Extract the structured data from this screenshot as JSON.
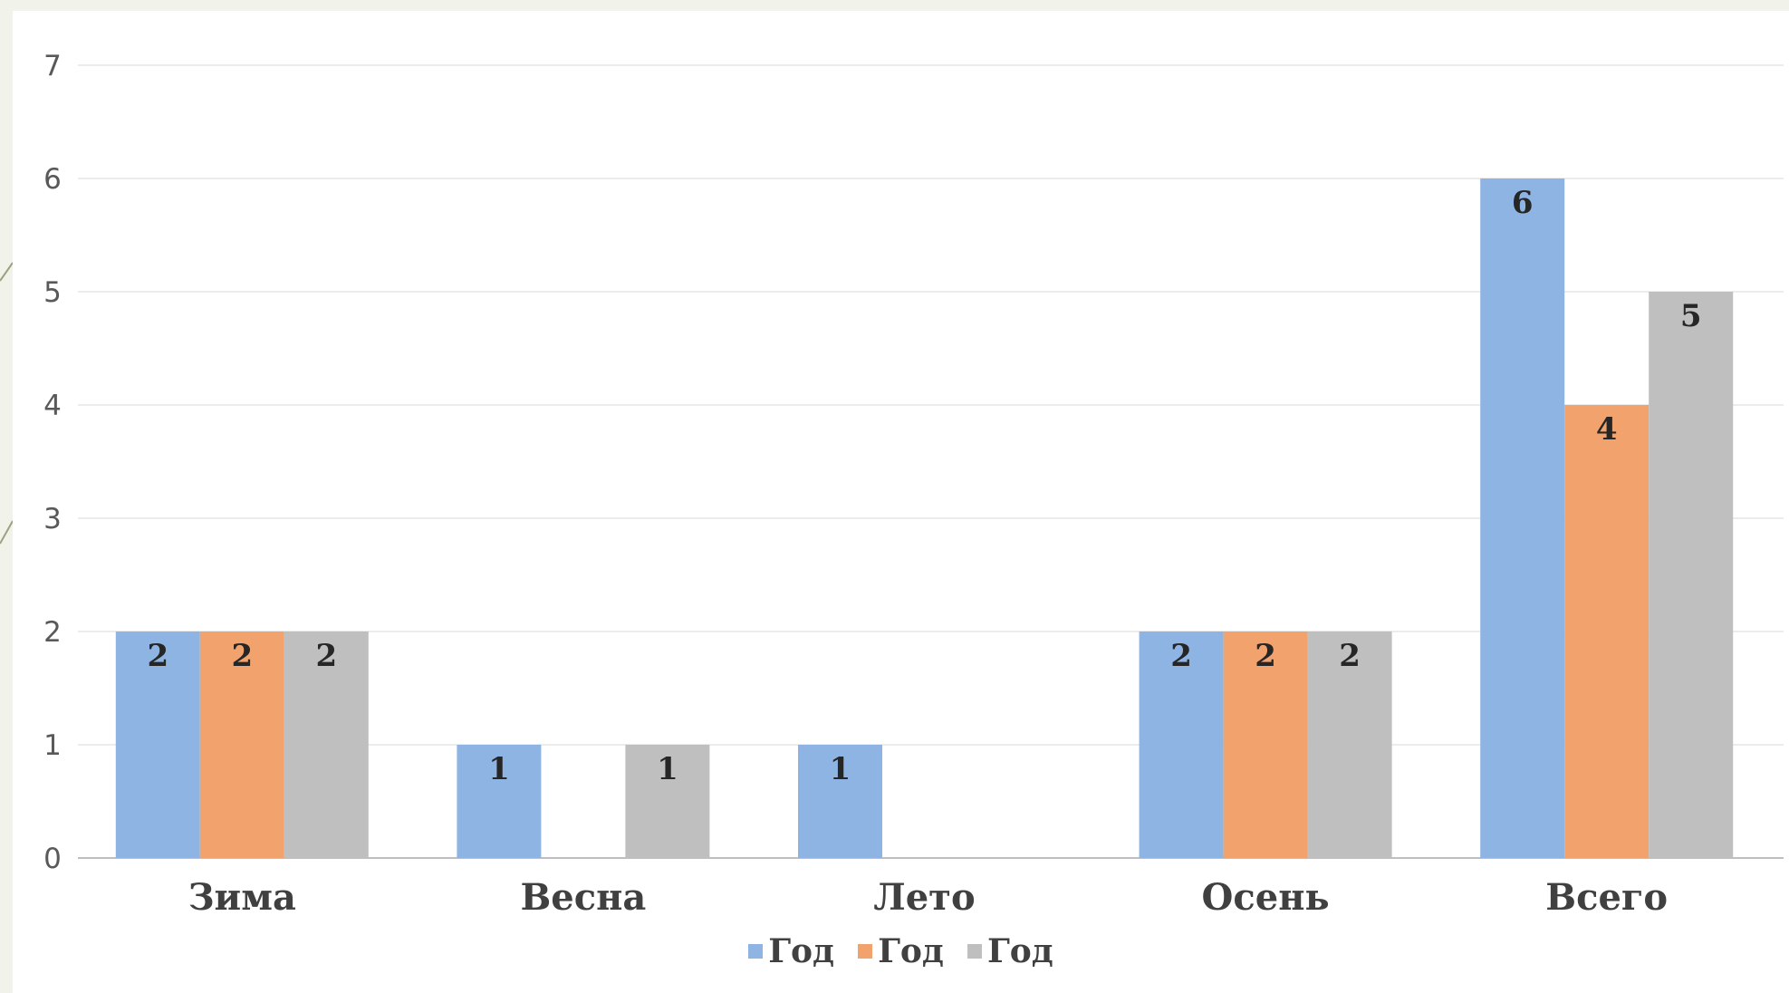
{
  "chart_data": {
    "type": "bar",
    "categories": [
      "Зима",
      "Весна",
      "Лето",
      "Осень",
      "Всего"
    ],
    "series": [
      {
        "name": "Год",
        "color": "#8db4e2",
        "values": [
          2,
          1,
          1,
          2,
          6
        ]
      },
      {
        "name": "Год",
        "color": "#f2a26d",
        "values": [
          2,
          0,
          0,
          2,
          4
        ]
      },
      {
        "name": "Год",
        "color": "#bfbfbf",
        "values": [
          2,
          1,
          0,
          2,
          5
        ]
      }
    ],
    "ylim": [
      0,
      7
    ],
    "yticks": [
      0,
      1,
      2,
      3,
      4,
      5,
      6,
      7
    ],
    "grid": true,
    "legend": "bottom",
    "title": "",
    "xlabel": "",
    "ylabel": ""
  }
}
